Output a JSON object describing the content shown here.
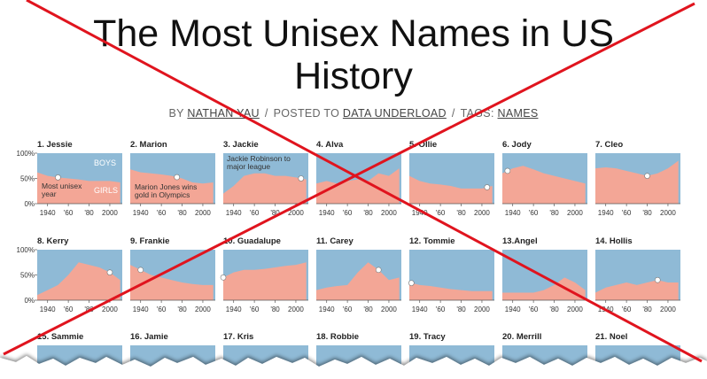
{
  "page": {
    "title": "The Most Unisex Names in US History",
    "byline": {
      "author_prefix": "BY",
      "author": "NATHAN YAU",
      "separator": "/",
      "posted_prefix": "POSTED TO",
      "category": "DATA UNDERLOAD",
      "tags_prefix": "TAGS:",
      "tag": "NAMES"
    },
    "style": {
      "boys_color": "#8fbad6",
      "girls_color": "#f3a696",
      "cross_color": "#e0141e"
    },
    "cut_off_titles": [
      "15. Sammie",
      "16. Jamie",
      "17. Kris",
      "18. Robbie",
      "19. Tracy",
      "20. Merrill",
      "21. Noel"
    ]
  },
  "chart_data": [
    {
      "type": "area",
      "title": "1. Jessie",
      "x": [
        1930,
        1940,
        1950,
        1960,
        1970,
        1980,
        1990,
        2000,
        2010
      ],
      "values": [
        62,
        55,
        52,
        50,
        48,
        45,
        45,
        45,
        42
      ],
      "highlight_x": 1950,
      "ylim": [
        0,
        100
      ],
      "xlim": [
        1930,
        2012
      ],
      "yticks": [
        {
          "value": 0,
          "label": "0%"
        },
        {
          "value": 50,
          "label": "50%"
        },
        {
          "value": 100,
          "label": "100%"
        }
      ],
      "xticks": [
        1940,
        {
          "value": 1960,
          "label": "'60"
        },
        {
          "value": 1980,
          "label": "'80"
        },
        2000
      ],
      "annotations": [
        "BOYS",
        "GIRLS",
        "Most unisex year"
      ]
    },
    {
      "type": "area",
      "title": "2. Marion",
      "x": [
        1930,
        1940,
        1950,
        1960,
        1970,
        1980,
        1990,
        2000,
        2010
      ],
      "values": [
        68,
        62,
        60,
        58,
        55,
        50,
        42,
        40,
        42
      ],
      "highlight_x": 1975,
      "ylim": [
        0,
        100
      ],
      "xlim": [
        1930,
        2012
      ],
      "xticks": [
        1940,
        {
          "value": 1960,
          "label": "'60"
        },
        {
          "value": 1980,
          "label": "'80"
        },
        2000
      ],
      "annotations": [
        "Marion Jones wins gold in Olympics"
      ]
    },
    {
      "type": "area",
      "title": "3. Jackie",
      "x": [
        1930,
        1940,
        1950,
        1960,
        1970,
        1980,
        1990,
        2000,
        2010
      ],
      "values": [
        20,
        35,
        55,
        60,
        60,
        55,
        55,
        52,
        48
      ],
      "highlight_x": 2005,
      "ylim": [
        0,
        100
      ],
      "xlim": [
        1930,
        2012
      ],
      "xticks": [
        1940,
        {
          "value": 1960,
          "label": "'60"
        },
        {
          "value": 1980,
          "label": "'80"
        },
        2000
      ],
      "annotations": [
        "Jackie Robinson to major league"
      ]
    },
    {
      "type": "area",
      "title": "4. Alva",
      "x": [
        1930,
        1940,
        1950,
        1960,
        1970,
        1980,
        1990,
        2000,
        2010
      ],
      "values": [
        40,
        45,
        40,
        45,
        48,
        45,
        60,
        55,
        70
      ],
      "ylim": [
        0,
        100
      ],
      "xlim": [
        1930,
        2012
      ],
      "xticks": [
        1940,
        {
          "value": 1960,
          "label": "'60"
        },
        {
          "value": 1980,
          "label": "'80"
        },
        2000
      ]
    },
    {
      "type": "area",
      "title": "5. Ollie",
      "x": [
        1930,
        1940,
        1950,
        1960,
        1970,
        1980,
        1990,
        2000,
        2010
      ],
      "values": [
        55,
        45,
        40,
        38,
        35,
        30,
        30,
        30,
        35
      ],
      "highlight_x": 2005,
      "ylim": [
        0,
        100
      ],
      "xlim": [
        1930,
        2012
      ],
      "xticks": [
        1940,
        {
          "value": 1960,
          "label": "'60"
        },
        {
          "value": 1980,
          "label": "'80"
        },
        2000
      ]
    },
    {
      "type": "area",
      "title": "6. Jody",
      "x": [
        1930,
        1940,
        1950,
        1960,
        1970,
        1980,
        1990,
        2000,
        2010
      ],
      "values": [
        60,
        70,
        75,
        68,
        60,
        55,
        50,
        45,
        40
      ],
      "highlight_x": 1935,
      "ylim": [
        0,
        100
      ],
      "xlim": [
        1930,
        2012
      ],
      "xticks": [
        1940,
        {
          "value": 1960,
          "label": "'60"
        },
        {
          "value": 1980,
          "label": "'80"
        },
        2000
      ]
    },
    {
      "type": "area",
      "title": "7. Cleo",
      "x": [
        1930,
        1940,
        1950,
        1960,
        1970,
        1980,
        1990,
        2000,
        2010
      ],
      "values": [
        70,
        72,
        70,
        65,
        60,
        55,
        60,
        70,
        85
      ],
      "highlight_x": 1980,
      "ylim": [
        0,
        100
      ],
      "xlim": [
        1930,
        2012
      ],
      "xticks": [
        1940,
        {
          "value": 1960,
          "label": "'60"
        },
        {
          "value": 1980,
          "label": "'80"
        },
        2000
      ]
    },
    {
      "type": "area",
      "title": "8. Kerry",
      "x": [
        1930,
        1940,
        1950,
        1960,
        1970,
        1980,
        1990,
        2000,
        2010
      ],
      "values": [
        10,
        20,
        30,
        50,
        75,
        70,
        65,
        55,
        40
      ],
      "highlight_x": 2000,
      "ylim": [
        0,
        100
      ],
      "xlim": [
        1930,
        2012
      ],
      "yticks": [
        {
          "value": 0,
          "label": "0%"
        },
        {
          "value": 50,
          "label": "50%"
        },
        {
          "value": 100,
          "label": "100%"
        }
      ],
      "xticks": [
        1940,
        {
          "value": 1960,
          "label": "'60"
        },
        {
          "value": 1980,
          "label": "'80"
        },
        2000
      ]
    },
    {
      "type": "area",
      "title": "9. Frankie",
      "x": [
        1930,
        1940,
        1950,
        1960,
        1970,
        1980,
        1990,
        2000,
        2010
      ],
      "values": [
        70,
        60,
        50,
        45,
        40,
        35,
        32,
        30,
        30
      ],
      "highlight_x": 1940,
      "ylim": [
        0,
        100
      ],
      "xlim": [
        1930,
        2012
      ],
      "xticks": [
        1940,
        {
          "value": 1960,
          "label": "'60"
        },
        {
          "value": 1980,
          "label": "'80"
        },
        2000
      ]
    },
    {
      "type": "area",
      "title": "10. Guadalupe",
      "x": [
        1930,
        1940,
        1950,
        1960,
        1970,
        1980,
        1990,
        2000,
        2010
      ],
      "values": [
        45,
        55,
        60,
        60,
        62,
        65,
        68,
        70,
        75
      ],
      "highlight_x": 1930,
      "ylim": [
        0,
        100
      ],
      "xlim": [
        1930,
        2012
      ],
      "xticks": [
        1940,
        {
          "value": 1960,
          "label": "'60"
        },
        {
          "value": 1980,
          "label": "'80"
        },
        2000
      ]
    },
    {
      "type": "area",
      "title": "11. Carey",
      "x": [
        1930,
        1940,
        1950,
        1960,
        1970,
        1980,
        1990,
        2000,
        2010
      ],
      "values": [
        20,
        25,
        28,
        30,
        55,
        75,
        60,
        40,
        45
      ],
      "highlight_x": 1990,
      "ylim": [
        0,
        100
      ],
      "xlim": [
        1930,
        2012
      ],
      "xticks": [
        1940,
        {
          "value": 1960,
          "label": "'60"
        },
        {
          "value": 1980,
          "label": "'80"
        },
        2000
      ]
    },
    {
      "type": "area",
      "title": "12. Tommie",
      "x": [
        1930,
        1940,
        1950,
        1960,
        1970,
        1980,
        1990,
        2000,
        2010
      ],
      "values": [
        35,
        30,
        28,
        25,
        22,
        20,
        18,
        18,
        18
      ],
      "highlight_x": 1932,
      "ylim": [
        0,
        100
      ],
      "xlim": [
        1930,
        2012
      ],
      "xticks": [
        1940,
        {
          "value": 1960,
          "label": "'60"
        },
        {
          "value": 1980,
          "label": "'80"
        },
        2000
      ]
    },
    {
      "type": "area",
      "title": "13.Angel",
      "x": [
        1930,
        1940,
        1950,
        1960,
        1970,
        1980,
        1990,
        2000,
        2010
      ],
      "values": [
        15,
        15,
        15,
        15,
        20,
        30,
        45,
        35,
        20
      ],
      "ylim": [
        0,
        100
      ],
      "xlim": [
        1930,
        2012
      ],
      "xticks": [
        1940,
        {
          "value": 1960,
          "label": "'60"
        },
        {
          "value": 1980,
          "label": "'80"
        },
        2000
      ]
    },
    {
      "type": "area",
      "title": "14. Hollis",
      "x": [
        1930,
        1940,
        1950,
        1960,
        1970,
        1980,
        1990,
        2000,
        2010
      ],
      "values": [
        15,
        25,
        30,
        35,
        30,
        35,
        40,
        35,
        35
      ],
      "highlight_x": 1990,
      "ylim": [
        0,
        100
      ],
      "xlim": [
        1930,
        2012
      ],
      "xticks": [
        1940,
        {
          "value": 1960,
          "label": "'60"
        },
        {
          "value": 1980,
          "label": "'80"
        },
        2000
      ]
    }
  ]
}
